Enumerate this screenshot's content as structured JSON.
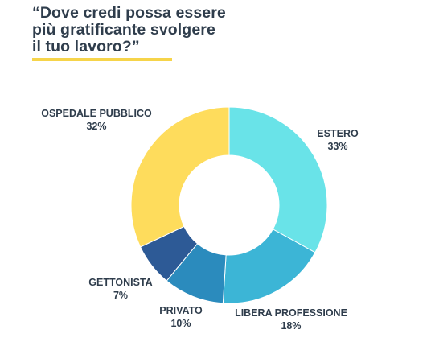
{
  "title": "“Dove credi possa essere\npiù gratificante svolgere\nil tuo lavoro?”",
  "colors": {
    "title_text": "#2f3d4c",
    "underline": "#f6d44a"
  },
  "chart_data": {
    "type": "pie",
    "variant": "donut",
    "slices": [
      {
        "label": "ESTERO",
        "value": 33,
        "value_label": "33%",
        "color": "#69e3e8"
      },
      {
        "label": "LIBERA PROFESSIONE",
        "value": 18,
        "value_label": "18%",
        "color": "#3cb5d6"
      },
      {
        "label": "PRIVATO",
        "value": 10,
        "value_label": "10%",
        "color": "#2b8bbd"
      },
      {
        "label": "GETTONISTA",
        "value": 7,
        "value_label": "7%",
        "color": "#2d5a96"
      },
      {
        "label": "OSPEDALE PUBBLICO",
        "value": 32,
        "value_label": "32%",
        "color": "#fedc5c"
      }
    ]
  }
}
